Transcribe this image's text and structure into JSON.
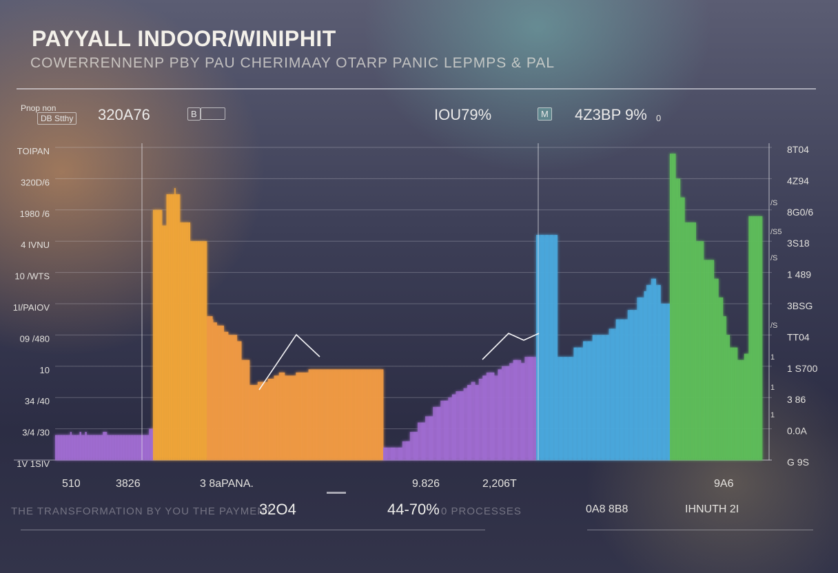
{
  "header": {
    "title": "PAYYALL INDOOR/WINIPHIT",
    "subtitle": "COWERRENNENP PBY PAU CHERIMAAY OTARP PANIC LEPMPS & PAL"
  },
  "stats": {
    "left_label_1": "Pnop non",
    "left_label_2": "DB Stthy",
    "left_value": "320A76",
    "left_badge": "B",
    "mid_value": "IOU79%",
    "right_badge": "M",
    "right_value": "4Z3BP 9%",
    "right_value_suffix": "0"
  },
  "chart_data": {
    "type": "bar",
    "title": "PAYYALL INDOOR/WINIPHIT",
    "subtitle": "COWERRENNENP PBY PAU CHERIMAAY OTARP PANIC LEPMPS & PAL",
    "y_ticks_left": [
      "TOIPAN",
      "320D/6",
      "1980 /6",
      "4 IVNU",
      "10 /WTS",
      "1I/PAIOV",
      "09 /480",
      "10",
      "34 /40",
      "3/4 /30",
      "1V 1SIV"
    ],
    "y_ticks_right": [
      "8T04",
      "4Z94",
      "8G0/6",
      "3S18",
      "1 489",
      "3BSG",
      "TT04",
      "1 S700",
      "3 86",
      "0.0A",
      "G 9S"
    ],
    "right_side_markers": [
      "/S",
      "/S5",
      "/S",
      "/S",
      "1",
      "1",
      "1"
    ],
    "series": [
      {
        "color": "#a06cd0",
        "values": [
          8,
          8,
          8,
          8,
          8,
          8,
          8,
          8,
          8,
          8,
          8,
          9,
          8,
          8,
          8,
          8,
          8,
          8,
          9,
          8,
          8,
          8,
          9,
          8,
          8,
          8,
          8,
          8,
          8,
          8,
          8,
          8,
          8,
          8,
          8,
          9,
          9,
          9,
          8,
          8,
          8,
          8,
          8,
          8,
          8,
          8,
          8,
          8,
          8,
          8,
          8,
          8,
          8,
          8,
          8,
          8,
          8,
          8,
          8,
          8,
          8,
          8,
          8,
          8,
          8,
          8,
          8,
          8,
          8,
          10,
          10,
          10
        ]
      },
      {
        "color": "#f0a53a",
        "values": [
          80,
          80,
          80,
          80,
          80,
          80,
          80,
          80,
          75,
          75,
          75,
          75,
          85,
          85,
          85,
          85,
          85,
          85,
          85,
          87,
          85,
          85,
          85,
          85,
          76,
          76,
          76,
          76,
          76,
          76,
          76,
          76,
          76,
          70,
          70,
          70,
          70,
          70,
          70,
          70,
          70,
          70,
          70,
          70,
          70,
          70,
          70,
          70
        ]
      },
      {
        "color": "#ef9a44",
        "values": [
          46,
          46,
          46,
          46,
          46,
          46,
          46,
          46,
          46,
          45,
          44,
          44,
          44,
          44,
          44,
          44,
          43,
          43,
          43,
          43,
          43,
          43,
          43,
          43,
          43,
          43,
          43,
          41,
          41,
          41,
          41,
          41,
          41,
          41,
          40,
          40,
          40,
          40,
          40,
          40,
          40,
          40,
          40,
          40,
          40,
          40,
          40,
          40,
          38,
          38,
          38,
          38,
          38,
          38,
          38,
          32,
          32,
          32,
          32,
          32,
          32,
          32,
          32,
          32,
          32,
          32,
          32,
          32,
          24,
          24,
          24,
          24,
          24,
          24,
          24,
          24,
          24,
          24,
          24,
          24,
          24,
          25,
          25,
          25,
          25,
          25,
          25,
          25,
          25,
          25,
          25,
          25,
          25,
          25,
          25,
          25,
          25,
          26,
          26,
          26,
          26,
          26,
          26,
          26,
          26,
          26,
          26,
          27,
          27,
          27,
          27,
          27,
          27,
          27,
          27,
          28,
          28,
          28,
          28,
          28,
          28,
          28,
          28,
          28,
          27,
          27,
          27,
          27,
          27,
          27,
          27,
          27,
          27,
          27,
          27,
          27,
          27,
          27,
          27,
          27,
          27,
          27,
          28,
          28,
          28,
          28,
          28,
          28,
          28,
          28,
          28,
          28,
          28,
          28,
          28,
          28,
          28,
          28,
          28,
          28,
          28,
          28,
          29,
          29,
          29,
          29,
          29,
          29,
          29,
          29,
          29,
          29,
          29,
          29,
          29,
          29,
          29,
          29,
          29,
          29,
          29,
          29,
          29,
          29,
          29,
          29,
          29,
          29,
          29,
          29,
          29,
          29,
          29,
          29,
          29,
          29,
          29,
          29,
          29,
          29,
          29,
          29,
          29,
          29,
          29,
          29,
          29,
          29,
          29,
          29,
          29,
          29,
          29,
          29,
          29,
          29,
          29,
          29,
          29,
          29,
          29,
          29,
          29,
          29,
          29,
          29,
          29,
          29,
          29,
          29,
          29,
          29,
          29,
          29,
          29,
          29,
          29,
          29,
          29,
          29,
          29,
          29,
          29,
          29,
          29,
          29,
          29,
          29,
          29,
          29,
          29,
          29,
          29,
          29,
          29,
          29,
          29,
          29,
          29,
          29,
          29,
          29,
          29,
          29,
          29,
          29,
          29,
          29,
          29,
          29,
          29,
          29,
          29,
          29,
          29,
          29,
          29,
          29,
          29,
          29,
          29
        ]
      },
      {
        "color": "#a06cd0",
        "values": [
          4,
          4,
          4,
          4,
          4,
          6,
          6,
          9,
          9,
          12,
          12,
          14,
          14,
          17,
          17,
          19,
          19,
          20,
          21,
          22,
          22,
          23,
          24,
          25,
          24,
          26,
          27,
          28,
          28,
          27,
          29,
          30,
          30,
          31,
          32,
          32,
          31,
          33,
          33,
          33
        ]
      },
      {
        "color": "#4aa8dc",
        "values": [
          72,
          72,
          72,
          72,
          72,
          72,
          72,
          72,
          72,
          33,
          33,
          33,
          33,
          33,
          33,
          33,
          36,
          36,
          36,
          36,
          38,
          38,
          38,
          38,
          40,
          40,
          40,
          40,
          40,
          40,
          40,
          42,
          42,
          42,
          45,
          45,
          45,
          45,
          45,
          48,
          48,
          48,
          48,
          52,
          52,
          52,
          54,
          56,
          56,
          58,
          58,
          56,
          56,
          50,
          50,
          50,
          50
        ]
      },
      {
        "color": "#5ebd5a",
        "values": [
          98,
          98,
          98,
          98,
          98,
          90,
          90,
          90,
          90,
          84,
          84,
          84,
          84,
          76,
          76,
          76,
          76,
          76,
          76,
          76,
          76,
          76,
          76,
          70,
          70,
          70,
          70,
          70,
          70,
          70,
          64,
          64,
          64,
          64,
          64,
          64,
          64,
          64,
          64,
          58,
          58,
          58,
          58,
          52,
          52,
          52,
          52,
          46,
          46,
          46,
          40,
          40,
          40,
          36,
          36,
          36,
          36,
          36,
          36,
          36,
          32,
          32,
          32,
          32,
          32,
          32,
          34,
          34,
          34,
          34,
          78,
          78,
          78,
          78,
          78,
          78,
          78,
          78,
          78,
          78,
          78,
          78
        ]
      }
    ],
    "grid": true
  },
  "bottom": {
    "v1": "510",
    "v2": "3826",
    "v3": "3 8aPANA.",
    "v4": "9.826",
    "v5": "2,206T",
    "v6": "9A6",
    "big1": "32O4",
    "big2": "44-70%",
    "faint1": "THE TRANSFORMATION BY YOU THE PAYMENT",
    "faint2": "0 PROCESSES",
    "v7": "0A8 8B8",
    "v8": "IHNUTH 2I"
  },
  "colors": {
    "orange": "#f0a53a",
    "purple": "#a06cd0",
    "blue": "#4aa8dc",
    "green": "#5ebd5a"
  }
}
